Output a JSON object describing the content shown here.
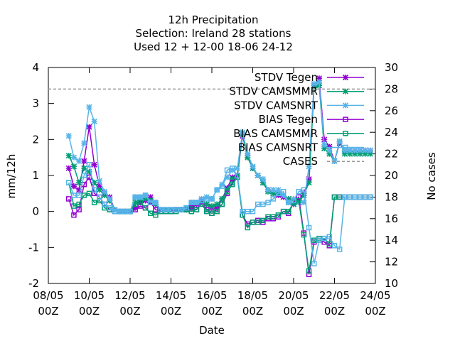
{
  "chart_data": {
    "type": "line",
    "title_lines": [
      "12h Precipitation",
      "Selection: Ireland      28 stations",
      "Used  12 + 12-00 18-06 24-12"
    ],
    "xlabel": "Date",
    "ylabel": "mm/12h",
    "y2label": "No cases",
    "x_unit": "days since 08/05 00Z",
    "xlim": [
      0,
      16
    ],
    "ylim": [
      -2,
      4
    ],
    "y2lim": [
      10,
      30
    ],
    "x_ticks": [
      {
        "x": 0,
        "l1": "08/05",
        "l2": "00Z"
      },
      {
        "x": 2,
        "l1": "10/05",
        "l2": "00Z"
      },
      {
        "x": 4,
        "l1": "12/05",
        "l2": "00Z"
      },
      {
        "x": 6,
        "l1": "14/05",
        "l2": "00Z"
      },
      {
        "x": 8,
        "l1": "16/05",
        "l2": "00Z"
      },
      {
        "x": 10,
        "l1": "18/05",
        "l2": "00Z"
      },
      {
        "x": 12,
        "l1": "20/05",
        "l2": "00Z"
      },
      {
        "x": 14,
        "l1": "22/05",
        "l2": "00Z"
      },
      {
        "x": 16,
        "l1": "24/05",
        "l2": "00Z"
      }
    ],
    "y_ticks": [
      "-2",
      "-1",
      "0",
      "1",
      "2",
      "3",
      "4"
    ],
    "y2_ticks": [
      "10",
      "12",
      "14",
      "16",
      "18",
      "20",
      "22",
      "24",
      "26",
      "28",
      "30"
    ],
    "x": [
      1.0,
      1.25,
      1.5,
      1.75,
      2.0,
      2.25,
      2.5,
      2.75,
      3.0,
      3.25,
      3.5,
      3.75,
      4.0,
      4.25,
      4.5,
      4.75,
      5.0,
      5.25,
      5.5,
      5.75,
      6.0,
      6.25,
      6.5,
      6.75,
      7.0,
      7.25,
      7.5,
      7.75,
      8.0,
      8.25,
      8.5,
      8.75,
      9.0,
      9.25,
      9.5,
      9.75,
      10.0,
      10.25,
      10.5,
      10.75,
      11.0,
      11.25,
      11.5,
      11.75,
      12.0,
      12.25,
      12.5,
      12.75,
      13.0,
      13.25,
      13.5,
      13.75,
      14.0,
      14.25,
      14.5,
      14.75,
      15.0,
      15.25,
      15.5,
      15.75
    ],
    "series": [
      {
        "name": "STDV Tegen",
        "color": "#9400d3",
        "marker": "x",
        "axis": "y",
        "values": [
          1.2,
          0.7,
          0.6,
          1.4,
          2.35,
          1.3,
          0.7,
          0.5,
          0.4,
          0.05,
          0.0,
          0.0,
          0.0,
          0.1,
          0.25,
          0.3,
          0.4,
          0.2,
          0.05,
          0.05,
          0.05,
          0.05,
          0.05,
          0.05,
          0.1,
          0.2,
          0.25,
          0.2,
          0.1,
          0.1,
          0.35,
          0.65,
          0.95,
          1.0,
          2.1,
          1.55,
          1.2,
          1.0,
          0.8,
          0.6,
          0.5,
          0.45,
          0.4,
          0.3,
          0.2,
          0.3,
          0.5,
          0.9,
          3.5,
          3.7,
          2.0,
          1.8,
          1.4,
          1.9,
          1.7,
          1.7,
          1.7,
          1.7,
          1.7,
          1.7
        ]
      },
      {
        "name": "STDV CAMSMMR",
        "color": "#009e73",
        "marker": "x",
        "axis": "y",
        "values": [
          1.55,
          1.25,
          0.8,
          1.2,
          1.1,
          0.8,
          0.6,
          0.45,
          0.3,
          0.05,
          0.0,
          0.0,
          0.0,
          0.25,
          0.35,
          0.35,
          0.3,
          0.2,
          0.05,
          0.05,
          0.05,
          0.05,
          0.05,
          0.05,
          0.15,
          0.25,
          0.3,
          0.2,
          0.15,
          0.2,
          0.35,
          0.6,
          0.9,
          1.0,
          2.15,
          1.5,
          1.2,
          1.0,
          0.8,
          0.55,
          0.5,
          0.5,
          0.45,
          0.35,
          0.2,
          0.25,
          0.45,
          0.8,
          3.45,
          3.5,
          1.75,
          1.6,
          1.4,
          1.95,
          1.6,
          1.6,
          1.6,
          1.6,
          1.6,
          1.6
        ]
      },
      {
        "name": "STDV CAMSNRT",
        "color": "#56b4e9",
        "marker": "x",
        "axis": "y",
        "values": [
          2.1,
          1.5,
          1.4,
          1.9,
          2.9,
          2.5,
          0.85,
          0.55,
          0.35,
          0.05,
          0.0,
          0.0,
          0.0,
          0.4,
          0.4,
          0.45,
          0.25,
          0.25,
          0.05,
          0.05,
          0.05,
          0.05,
          0.05,
          0.1,
          0.25,
          0.25,
          0.35,
          0.4,
          0.35,
          0.6,
          0.75,
          0.95,
          1.15,
          1.2,
          2.2,
          1.6,
          1.25,
          1.0,
          0.9,
          0.6,
          0.6,
          0.6,
          0.45,
          0.25,
          0.35,
          0.25,
          0.25,
          1.25,
          3.55,
          3.6,
          1.85,
          1.7,
          1.4,
          1.95,
          1.7,
          1.7,
          1.7,
          1.7,
          1.7,
          1.7
        ]
      },
      {
        "name": "BIAS Tegen",
        "color": "#9400d3",
        "marker": "square",
        "axis": "y",
        "values": [
          0.35,
          -0.1,
          0.05,
          0.75,
          0.95,
          0.5,
          0.4,
          0.2,
          0.05,
          0.0,
          0.0,
          0.0,
          0.0,
          0.05,
          0.15,
          0.1,
          0.25,
          0.05,
          0.0,
          0.0,
          0.0,
          0.05,
          0.05,
          0.05,
          0.1,
          0.05,
          0.3,
          0.05,
          -0.05,
          0.05,
          0.2,
          0.5,
          0.8,
          1.0,
          -0.1,
          -0.35,
          -0.3,
          -0.25,
          -0.3,
          -0.2,
          -0.2,
          -0.15,
          0.0,
          -0.05,
          0.25,
          0.4,
          -0.6,
          -1.75,
          -0.85,
          -0.8,
          -0.85,
          -0.95,
          0.4,
          0.4,
          0.4,
          0.4,
          0.4,
          0.4,
          0.4,
          0.4
        ]
      },
      {
        "name": "BIAS CAMSMMR",
        "color": "#009e73",
        "marker": "square",
        "axis": "y",
        "values": [
          0.8,
          0.15,
          0.2,
          0.45,
          0.5,
          0.25,
          0.3,
          0.1,
          0.05,
          0.0,
          0.0,
          0.0,
          0.0,
          0.2,
          0.25,
          0.1,
          -0.05,
          -0.1,
          0.0,
          0.0,
          0.0,
          0.0,
          0.05,
          0.05,
          0.0,
          0.05,
          0.2,
          0.0,
          -0.05,
          0.0,
          0.2,
          0.55,
          0.75,
          0.95,
          -0.1,
          -0.45,
          -0.3,
          -0.3,
          -0.25,
          -0.15,
          -0.15,
          -0.1,
          0.0,
          0.0,
          0.25,
          0.3,
          -0.65,
          -1.65,
          -0.8,
          -0.75,
          -0.75,
          -0.9,
          0.4,
          0.4,
          0.4,
          0.4,
          0.4,
          0.4,
          0.4,
          0.4
        ]
      },
      {
        "name": "BIAS CAMSNRT",
        "color": "#56b4e9",
        "marker": "square",
        "axis": "y",
        "values": [
          0.8,
          0.45,
          0.45,
          1.0,
          1.3,
          0.6,
          0.4,
          0.2,
          0.1,
          0.0,
          0.0,
          0.0,
          0.0,
          0.4,
          0.4,
          0.45,
          0.25,
          0.25,
          0.05,
          0.05,
          0.05,
          0.05,
          0.05,
          0.1,
          0.25,
          0.25,
          0.3,
          0.35,
          0.35,
          0.6,
          0.7,
          1.15,
          1.2,
          1.0,
          0.0,
          0.0,
          0.0,
          0.2,
          0.2,
          0.25,
          0.35,
          0.5,
          0.55,
          0.25,
          0.3,
          0.55,
          0.6,
          -0.45,
          -1.45,
          -0.8,
          -0.75,
          -0.7,
          -0.95,
          -1.05,
          0.4,
          0.4,
          0.4,
          0.4,
          0.4,
          0.4
        ]
      },
      {
        "name": "CASES",
        "color": "#999999",
        "marker": "none",
        "axis": "y2",
        "dash": true,
        "x": [
          0.0,
          16.0
        ],
        "values": [
          28,
          28
        ]
      }
    ],
    "legend_placement": "top-right"
  }
}
